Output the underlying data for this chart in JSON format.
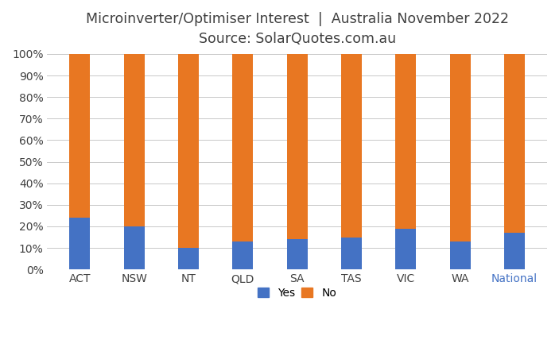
{
  "title_line1": "Microinverter/Optimiser Interest  |  Australia November 2022",
  "title_line2": "Source: SolarQuotes.com.au",
  "categories": [
    "ACT",
    "NSW",
    "NT",
    "QLD",
    "SA",
    "TAS",
    "VIC",
    "WA",
    "National"
  ],
  "yes_values": [
    24,
    20,
    10,
    13,
    14,
    15,
    19,
    13,
    17
  ],
  "no_values": [
    76,
    80,
    90,
    87,
    86,
    85,
    81,
    87,
    83
  ],
  "yes_color": "#4472C4",
  "no_color": "#E87722",
  "background_color": "#FFFFFF",
  "title_color": "#404040",
  "national_label_color": "#4472C4",
  "bar_width": 0.38,
  "ylim": [
    0,
    100
  ],
  "ytick_labels": [
    "0%",
    "10%",
    "20%",
    "30%",
    "40%",
    "50%",
    "60%",
    "70%",
    "80%",
    "90%",
    "100%"
  ],
  "ytick_values": [
    0,
    10,
    20,
    30,
    40,
    50,
    60,
    70,
    80,
    90,
    100
  ],
  "grid_color": "#C8C8C8",
  "grid_linewidth": 0.7,
  "legend_labels": [
    "Yes",
    "No"
  ],
  "title_fontsize": 12.5,
  "subtitle_fontsize": 12.5,
  "tick_fontsize": 10,
  "legend_fontsize": 10
}
